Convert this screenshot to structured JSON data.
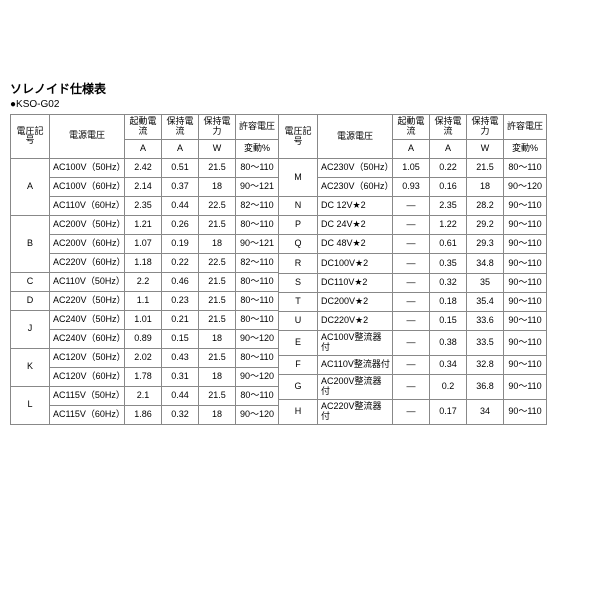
{
  "title": "ソレノイド仕様表",
  "subtitle": "●KSO-G02",
  "headers": {
    "code": "電圧記号",
    "volt": "電源電圧",
    "start": "起動電流",
    "hold": "保持電流",
    "power": "保持電力",
    "tol": "許容電圧",
    "unitA": "A",
    "unitW": "W",
    "unitPct": "変動%"
  },
  "left": [
    {
      "code": "A",
      "rows": [
        {
          "v": "AC100V（50Hz）",
          "a": "2.42",
          "b": "0.51",
          "c": "21.5",
          "d": "80～110"
        },
        {
          "v": "AC100V（60Hz）",
          "a": "2.14",
          "b": "0.37",
          "c": "18",
          "d": "90～121"
        },
        {
          "v": "AC110V（60Hz）",
          "a": "2.35",
          "b": "0.44",
          "c": "22.5",
          "d": "82～110"
        }
      ]
    },
    {
      "code": "B",
      "rows": [
        {
          "v": "AC200V（50Hz）",
          "a": "1.21",
          "b": "0.26",
          "c": "21.5",
          "d": "80～110"
        },
        {
          "v": "AC200V（60Hz）",
          "a": "1.07",
          "b": "0.19",
          "c": "18",
          "d": "90～121"
        },
        {
          "v": "AC220V（60Hz）",
          "a": "1.18",
          "b": "0.22",
          "c": "22.5",
          "d": "82～110"
        }
      ]
    },
    {
      "code": "C",
      "rows": [
        {
          "v": "AC110V（50Hz）",
          "a": "2.2",
          "b": "0.46",
          "c": "21.5",
          "d": "80～110"
        }
      ]
    },
    {
      "code": "D",
      "rows": [
        {
          "v": "AC220V（50Hz）",
          "a": "1.1",
          "b": "0.23",
          "c": "21.5",
          "d": "80～110"
        }
      ]
    },
    {
      "code": "J",
      "rows": [
        {
          "v": "AC240V（50Hz）",
          "a": "1.01",
          "b": "0.21",
          "c": "21.5",
          "d": "80～110"
        },
        {
          "v": "AC240V（60Hz）",
          "a": "0.89",
          "b": "0.15",
          "c": "18",
          "d": "90～120"
        }
      ]
    },
    {
      "code": "K",
      "rows": [
        {
          "v": "AC120V（50Hz）",
          "a": "2.02",
          "b": "0.43",
          "c": "21.5",
          "d": "80～110"
        },
        {
          "v": "AC120V（60Hz）",
          "a": "1.78",
          "b": "0.31",
          "c": "18",
          "d": "90～120"
        }
      ]
    },
    {
      "code": "L",
      "rows": [
        {
          "v": "AC115V（50Hz）",
          "a": "2.1",
          "b": "0.44",
          "c": "21.5",
          "d": "80～110"
        },
        {
          "v": "AC115V（60Hz）",
          "a": "1.86",
          "b": "0.32",
          "c": "18",
          "d": "90～120"
        }
      ]
    }
  ],
  "right": [
    {
      "code": "M",
      "rows": [
        {
          "v": "AC230V（50Hz）",
          "a": "1.05",
          "b": "0.22",
          "c": "21.5",
          "d": "80～110"
        },
        {
          "v": "AC230V（60Hz）",
          "a": "0.93",
          "b": "0.16",
          "c": "18",
          "d": "90～120"
        }
      ]
    },
    {
      "code": "N",
      "rows": [
        {
          "v": "DC 12V★2",
          "a": "―",
          "b": "2.35",
          "c": "28.2",
          "d": "90～110"
        }
      ]
    },
    {
      "code": "P",
      "rows": [
        {
          "v": "DC 24V★2",
          "a": "―",
          "b": "1.22",
          "c": "29.2",
          "d": "90～110"
        }
      ]
    },
    {
      "code": "Q",
      "rows": [
        {
          "v": "DC 48V★2",
          "a": "―",
          "b": "0.61",
          "c": "29.3",
          "d": "90～110"
        }
      ]
    },
    {
      "code": "R",
      "rows": [
        {
          "v": "DC100V★2",
          "a": "―",
          "b": "0.35",
          "c": "34.8",
          "d": "90～110"
        }
      ]
    },
    {
      "code": "S",
      "rows": [
        {
          "v": "DC110V★2",
          "a": "―",
          "b": "0.32",
          "c": "35",
          "d": "90～110"
        }
      ]
    },
    {
      "code": "T",
      "rows": [
        {
          "v": "DC200V★2",
          "a": "―",
          "b": "0.18",
          "c": "35.4",
          "d": "90～110"
        }
      ]
    },
    {
      "code": "U",
      "rows": [
        {
          "v": "DC220V★2",
          "a": "―",
          "b": "0.15",
          "c": "33.6",
          "d": "90～110"
        }
      ]
    },
    {
      "code": "E",
      "rows": [
        {
          "v": "AC100V整流器付",
          "a": "―",
          "b": "0.38",
          "c": "33.5",
          "d": "90～110"
        }
      ]
    },
    {
      "code": "F",
      "rows": [
        {
          "v": "AC110V整流器付",
          "a": "―",
          "b": "0.34",
          "c": "32.8",
          "d": "90～110"
        }
      ]
    },
    {
      "code": "G",
      "rows": [
        {
          "v": "AC200V整流器付",
          "a": "―",
          "b": "0.2",
          "c": "36.8",
          "d": "90～110"
        }
      ]
    },
    {
      "code": "H",
      "rows": [
        {
          "v": "AC220V整流器付",
          "a": "―",
          "b": "0.17",
          "c": "34",
          "d": "90～110"
        }
      ]
    }
  ]
}
